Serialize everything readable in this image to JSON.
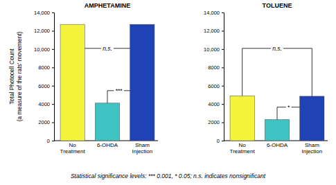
{
  "chart_data": [
    {
      "type": "bar",
      "title": "AMPHETAMINE",
      "categories": [
        "No Treatment",
        "6-OHDA",
        "Sham Injection"
      ],
      "values": [
        12700,
        4100,
        12700
      ],
      "colors": [
        "#f4f43c",
        "#3ec2c2",
        "#1f42b5"
      ],
      "ylim": [
        0,
        14000
      ],
      "yticks": [
        0,
        2000,
        4000,
        6000,
        8000,
        {
          "value": 10000,
          "label": "10,000"
        },
        {
          "value": 12000,
          "label": "12,000"
        },
        {
          "value": 14000,
          "label": "14,000"
        }
      ],
      "ylabel": [
        "Total Photocell Count",
        "(a measure of the rats' movement)"
      ],
      "annotations": [
        {
          "from": "No Treatment",
          "to": "Sham Injection",
          "label": "n.s."
        },
        {
          "from": "6-OHDA",
          "to": "Sham Injection",
          "label": "***"
        }
      ]
    },
    {
      "type": "bar",
      "title": "TOLUENE",
      "categories": [
        "No Treatment",
        "6-OHDA",
        "Sham Injection"
      ],
      "values": [
        4900,
        2300,
        4850
      ],
      "colors": [
        "#f4f43c",
        "#3ec2c2",
        "#1f42b5"
      ],
      "ylim": [
        0,
        14000
      ],
      "yticks": [
        0,
        2000,
        4000,
        6000,
        8000,
        {
          "value": 10000,
          "label": "10,000"
        },
        {
          "value": 12000,
          "label": "12,000"
        },
        {
          "value": 14000,
          "label": "14,000"
        }
      ],
      "annotations": [
        {
          "from": "No Treatment",
          "to": "Sham Injection",
          "label": "n.s."
        },
        {
          "from": "6-OHDA",
          "to": "Sham Injection",
          "label": "*"
        }
      ]
    }
  ],
  "caption": "Statistical significance levels: *** 0.001, * 0.05; n.s. indicates nonsignificant"
}
